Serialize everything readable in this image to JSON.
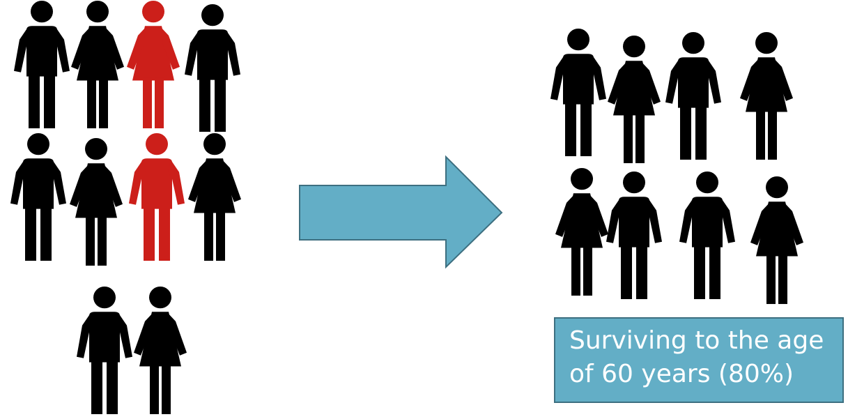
{
  "colors": {
    "person_default": "#000000",
    "person_highlight": "#cc1f1a",
    "arrow_fill": "#63aec6",
    "arrow_stroke": "#3d6f80",
    "caption_bg": "#63aec6",
    "caption_text": "#ffffff"
  },
  "before_group": {
    "total": 10,
    "highlighted": 2,
    "people": [
      {
        "kind": "man",
        "highlight": false
      },
      {
        "kind": "woman",
        "highlight": false
      },
      {
        "kind": "woman",
        "highlight": true
      },
      {
        "kind": "man",
        "highlight": false
      },
      {
        "kind": "man",
        "highlight": false
      },
      {
        "kind": "woman",
        "highlight": false
      },
      {
        "kind": "man",
        "highlight": true
      },
      {
        "kind": "woman",
        "highlight": false
      },
      {
        "kind": "man",
        "highlight": false
      },
      {
        "kind": "woman",
        "highlight": false
      }
    ]
  },
  "arrow": {
    "icon": "right-arrow-icon"
  },
  "after_group": {
    "total": 8,
    "people": [
      {
        "kind": "man"
      },
      {
        "kind": "woman"
      },
      {
        "kind": "man"
      },
      {
        "kind": "woman"
      },
      {
        "kind": "woman"
      },
      {
        "kind": "man"
      },
      {
        "kind": "man"
      },
      {
        "kind": "woman"
      }
    ]
  },
  "caption": {
    "line1": "Surviving to the age",
    "line2": "of 60 years (80%)"
  }
}
